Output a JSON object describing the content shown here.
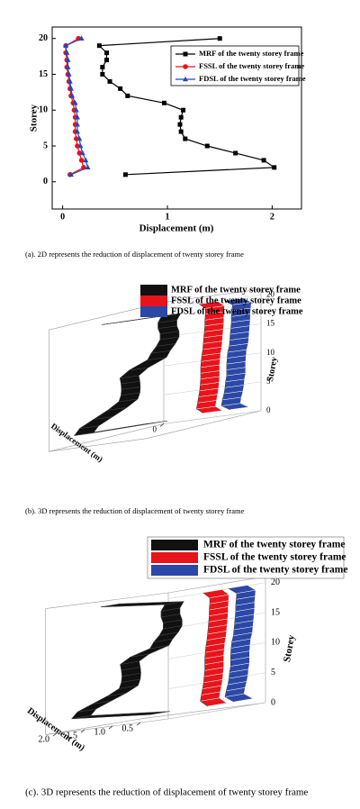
{
  "chart_data": [
    {
      "type": "line",
      "caption": "(a). 2D represents the reduction of displacement of twenty storey frame",
      "xlabel": "Displacement (m)",
      "ylabel": "Storey",
      "y": [
        1,
        2,
        3,
        4,
        5,
        6,
        7,
        8,
        9,
        10,
        11,
        12,
        13,
        14,
        15,
        16,
        17,
        18,
        19,
        20
      ],
      "series": [
        {
          "name": "MRF of the twenty storey frame",
          "color": "#000000",
          "marker": "square",
          "values": [
            0.6,
            2.02,
            1.92,
            1.65,
            1.38,
            1.17,
            1.13,
            1.12,
            1.13,
            1.15,
            0.97,
            0.62,
            0.55,
            0.45,
            0.38,
            0.38,
            0.42,
            0.42,
            0.35,
            1.5
          ]
        },
        {
          "name": "FSSL of the twenty storey frame",
          "color": "#e8141b",
          "marker": "circle",
          "values": [
            0.07,
            0.2,
            0.18,
            0.16,
            0.14,
            0.13,
            0.12,
            0.12,
            0.12,
            0.11,
            0.1,
            0.08,
            0.07,
            0.06,
            0.05,
            0.04,
            0.04,
            0.03,
            0.03,
            0.15
          ]
        },
        {
          "name": "FDSL of the twenty storey frame",
          "color": "#2946b8",
          "marker": "triangle",
          "values": [
            0.08,
            0.24,
            0.22,
            0.19,
            0.17,
            0.16,
            0.14,
            0.14,
            0.14,
            0.13,
            0.12,
            0.09,
            0.08,
            0.07,
            0.06,
            0.05,
            0.05,
            0.04,
            0.03,
            0.18
          ]
        }
      ],
      "xlim": [
        -0.1,
        2.28
      ],
      "xticks": [
        0,
        1,
        2
      ],
      "ylim": [
        -3.8,
        21.6
      ],
      "yticks": [
        0,
        5,
        10,
        15,
        20
      ],
      "legend": "upper right"
    },
    {
      "type": "ribbon3d",
      "caption": "(b). 3D represents the reduction of displacement of twenty storey frame",
      "xlabel": "Displacement (m)",
      "ylabel": "Storey",
      "y": [
        1,
        2,
        3,
        4,
        5,
        6,
        7,
        8,
        9,
        10,
        11,
        12,
        13,
        14,
        15,
        16,
        17,
        18,
        19,
        20
      ],
      "series": [
        {
          "name": "MRF of the twenty storey frame",
          "color": "#111111",
          "values": [
            0.6,
            2.02,
            1.92,
            1.65,
            1.38,
            1.17,
            1.13,
            1.12,
            1.13,
            1.15,
            0.97,
            0.62,
            0.55,
            0.45,
            0.38,
            0.38,
            0.42,
            0.42,
            0.35,
            1.5
          ]
        },
        {
          "name": "FSSL of the twenty storey frame",
          "color": "#e8141b",
          "values": [
            0.07,
            0.2,
            0.18,
            0.16,
            0.14,
            0.13,
            0.12,
            0.12,
            0.12,
            0.11,
            0.1,
            0.08,
            0.07,
            0.06,
            0.05,
            0.04,
            0.04,
            0.03,
            0.03,
            0.15
          ]
        },
        {
          "name": "FDSL of the twenty storey frame",
          "color": "#2b48a8",
          "values": [
            0.08,
            0.24,
            0.22,
            0.19,
            0.17,
            0.16,
            0.14,
            0.14,
            0.14,
            0.13,
            0.12,
            0.09,
            0.08,
            0.07,
            0.06,
            0.05,
            0.05,
            0.04,
            0.03,
            0.18
          ]
        }
      ],
      "xlim": [
        0,
        2.2
      ],
      "xticks": [
        0
      ],
      "ylim": [
        0,
        21
      ],
      "yticks": [
        0,
        5,
        10,
        15,
        20
      ],
      "legend": "top"
    },
    {
      "type": "ribbon3d",
      "caption": "(c). 3D represents the reduction of displacement of twenty storey frame",
      "xlabel": "Displacement (m)",
      "ylabel": "Storey",
      "y": [
        1,
        2,
        3,
        4,
        5,
        6,
        7,
        8,
        9,
        10,
        11,
        12,
        13,
        14,
        15,
        16,
        17,
        18,
        19,
        20
      ],
      "series": [
        {
          "name": "MRF of the twenty storey frame",
          "color": "#111111",
          "values": [
            0.6,
            2.02,
            1.92,
            1.65,
            1.38,
            1.17,
            1.13,
            1.12,
            1.13,
            1.15,
            0.97,
            0.62,
            0.55,
            0.45,
            0.38,
            0.38,
            0.42,
            0.42,
            0.35,
            1.5
          ]
        },
        {
          "name": "FSSL of the twenty storey frame",
          "color": "#e8141b",
          "values": [
            0.07,
            0.2,
            0.18,
            0.16,
            0.14,
            0.13,
            0.12,
            0.12,
            0.12,
            0.11,
            0.1,
            0.08,
            0.07,
            0.06,
            0.05,
            0.04,
            0.04,
            0.03,
            0.03,
            0.15
          ]
        },
        {
          "name": "FDSL of the twenty storey frame",
          "color": "#2b48a8",
          "values": [
            0.08,
            0.24,
            0.22,
            0.19,
            0.17,
            0.16,
            0.14,
            0.14,
            0.14,
            0.13,
            0.12,
            0.09,
            0.08,
            0.07,
            0.06,
            0.05,
            0.05,
            0.04,
            0.03,
            0.18
          ]
        }
      ],
      "xlim": [
        0,
        2.2
      ],
      "xticks": [
        0.5,
        {
          "value": 1,
          "label": "1.0"
        },
        1.5,
        {
          "value": 2,
          "label": "2.0"
        }
      ],
      "ylim": [
        0,
        21
      ],
      "yticks": [
        0,
        5,
        10,
        15,
        20
      ],
      "legend": "top"
    }
  ]
}
